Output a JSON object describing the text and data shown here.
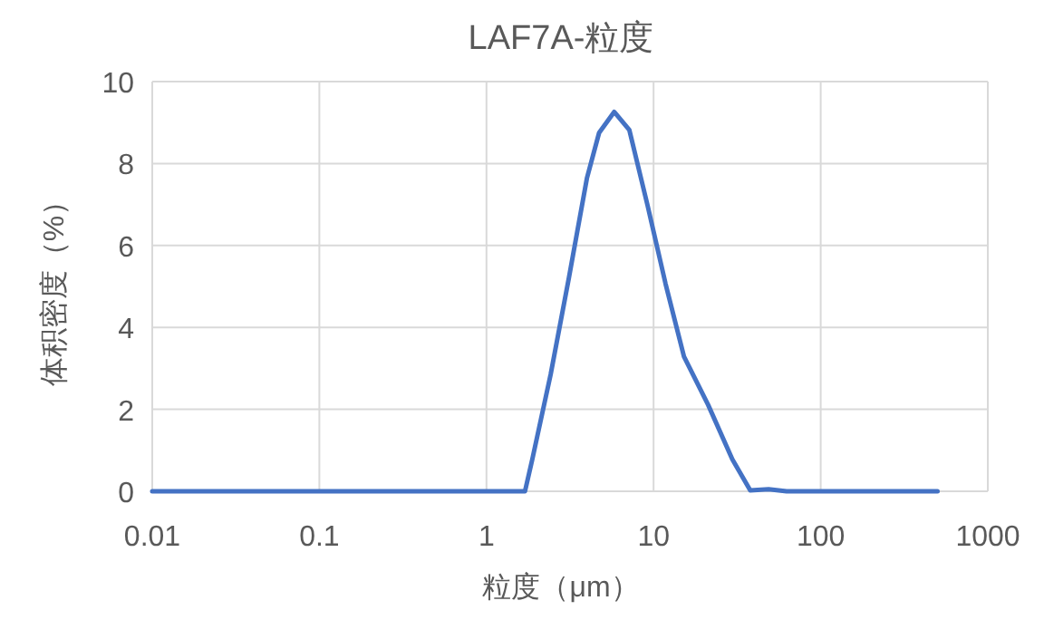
{
  "chart_data": {
    "type": "line",
    "title": "LAF7A-粒度",
    "xlabel": "粒度（μm）",
    "ylabel": "体积密度（%）",
    "log": "x",
    "grid": true,
    "xlim": [
      0.01,
      1000
    ],
    "ylim": [
      0,
      10
    ],
    "xticks": [
      0.01,
      0.1,
      1,
      10,
      100,
      1000
    ],
    "yticks": [
      0,
      2,
      4,
      6,
      8,
      10
    ],
    "series": [
      {
        "color": "#4472c4",
        "x": [
          0.01,
          1.7,
          1.88,
          2.42,
          3.11,
          3.99,
          4.72,
          5.81,
          7.16,
          9.2,
          11.8,
          15.2,
          21.2,
          29.6,
          37.9,
          48.8,
          62.5,
          500
        ],
        "values": [
          0,
          0,
          0.78,
          2.85,
          5.2,
          7.64,
          8.75,
          9.26,
          8.82,
          6.98,
          5.06,
          3.29,
          2.11,
          0.78,
          0.02,
          0.05,
          0,
          0
        ]
      }
    ]
  }
}
